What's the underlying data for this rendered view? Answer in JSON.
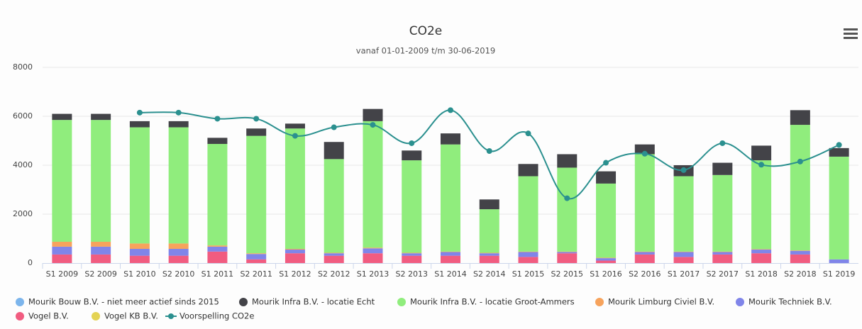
{
  "chart_data": {
    "type": "bar",
    "stacked": true,
    "title": "CO2e",
    "subtitle": "vanaf 01-01-2009 t/m 30-06-2019",
    "categories": [
      "S1 2009",
      "S2 2009",
      "S1 2010",
      "S2 2010",
      "S1 2011",
      "S2 2011",
      "S1 2012",
      "S2 2012",
      "S1 2013",
      "S2 2013",
      "S1 2014",
      "S2 2014",
      "S1 2015",
      "S2 2015",
      "S1 2016",
      "S2 2016",
      "S1 2017",
      "S2 2017",
      "S1 2018",
      "S2 2018",
      "S1 2019"
    ],
    "ylim": [
      0,
      8000
    ],
    "yticks": [
      0,
      2000,
      4000,
      6000,
      8000
    ],
    "grid": true,
    "series": [
      {
        "name": "Mourik Bouw B.V. - niet meer actief sinds 2015",
        "color": "#7cb5ec",
        "values": [
          0,
          0,
          0,
          0,
          0,
          0,
          0,
          0,
          0,
          0,
          0,
          0,
          0,
          0,
          0,
          0,
          0,
          0,
          0,
          0,
          0
        ]
      },
      {
        "name": "Mourik Infra B.V. - locatie Echt",
        "color": "#434348",
        "values": [
          250,
          250,
          250,
          250,
          250,
          300,
          200,
          700,
          500,
          400,
          450,
          400,
          500,
          550,
          500,
          400,
          450,
          500,
          600,
          600,
          350
        ]
      },
      {
        "name": "Mourik Infra B.V. - locatie Groot-Ammers",
        "color": "#90ed7d",
        "values": [
          4980,
          4980,
          4750,
          4750,
          4150,
          4800,
          4920,
          3830,
          5170,
          3780,
          4380,
          1780,
          3080,
          3430,
          3030,
          3980,
          3080,
          3130,
          3630,
          5130,
          4200
        ]
      },
      {
        "name": "Mourik Limburg Civiel B.V.",
        "color": "#f7a35c",
        "values": [
          200,
          200,
          220,
          220,
          50,
          30,
          30,
          20,
          30,
          20,
          20,
          20,
          20,
          20,
          20,
          20,
          20,
          20,
          20,
          20,
          0
        ]
      },
      {
        "name": "Mourik Techniek B.V.",
        "color": "#8085e9",
        "values": [
          320,
          320,
          280,
          280,
          200,
          220,
          150,
          100,
          200,
          100,
          150,
          100,
          200,
          50,
          100,
          100,
          200,
          100,
          150,
          150,
          150
        ]
      },
      {
        "name": "Vogel B.V.",
        "color": "#f15c80",
        "values": [
          350,
          350,
          300,
          300,
          470,
          150,
          400,
          300,
          400,
          300,
          300,
          300,
          250,
          400,
          100,
          350,
          250,
          350,
          400,
          350,
          0
        ]
      },
      {
        "name": "Vogel KB B.V.",
        "color": "#e4d354",
        "values": [
          0,
          0,
          0,
          0,
          0,
          0,
          0,
          0,
          0,
          0,
          0,
          0,
          0,
          0,
          0,
          0,
          0,
          0,
          0,
          0,
          0
        ]
      },
      {
        "name": "Voorspelling CO2e",
        "color": "#2b908f",
        "type": "line",
        "values": [
          null,
          null,
          6150,
          6150,
          5900,
          5900,
          5200,
          5550,
          5650,
          4900,
          6250,
          4580,
          5300,
          2650,
          4100,
          4470,
          3800,
          4900,
          4020,
          4150,
          4830
        ]
      }
    ]
  }
}
